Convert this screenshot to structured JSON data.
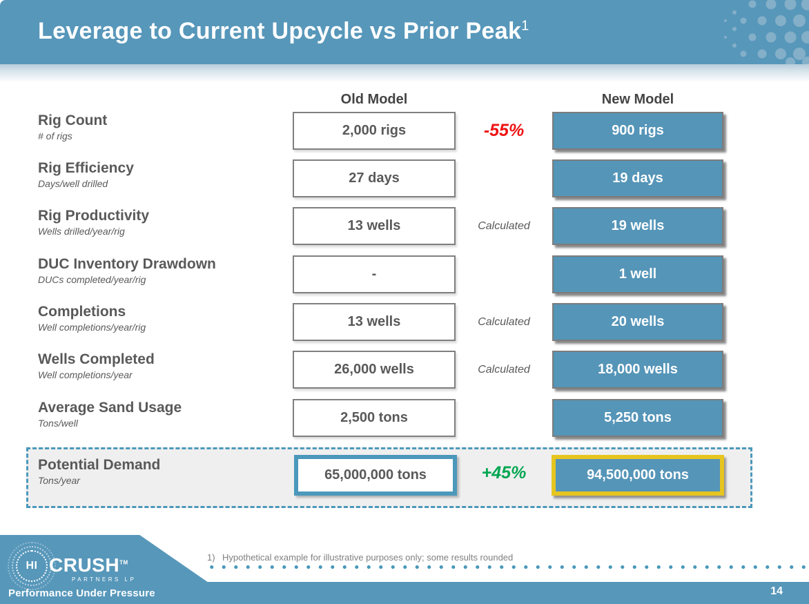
{
  "slide": {
    "title": "Leverage to Current Upcycle vs Prior Peak",
    "title_superscript": "1",
    "page_number": "14"
  },
  "colors": {
    "banner_blue": "#5797ba",
    "box_blue": "#5595b8",
    "pattern_dot_blue": "#84afc8",
    "box_border_gray": "#7f7f7f",
    "text_dark_gray": "#595959",
    "negative_red": "#ee1111",
    "positive_green": "#00a651",
    "summary_old_border_teal": "#4b98bb",
    "summary_new_border_gold": "#e6c51f",
    "summary_bg_gray": "#efefef",
    "footnote_gray": "#808080"
  },
  "table": {
    "columns": {
      "old_header": "Old Model",
      "new_header": "New Model"
    },
    "rows": [
      {
        "label": "Rig Count",
        "sublabel": "# of rigs",
        "old": "2,000 rigs",
        "delta": "-55%",
        "delta_style": "negative",
        "new": "900 rigs"
      },
      {
        "label": "Rig Efficiency",
        "sublabel": "Days/well drilled",
        "old": "27 days",
        "delta": "",
        "delta_style": "",
        "new": "19 days"
      },
      {
        "label": "Rig Productivity",
        "sublabel": "Wells drilled/year/rig",
        "old": "13 wells",
        "delta": "Calculated",
        "delta_style": "calculated",
        "new": "19 wells"
      },
      {
        "label": "DUC Inventory Drawdown",
        "sublabel": "DUCs completed/year/rig",
        "old": "-",
        "delta": "",
        "delta_style": "",
        "new": "1 well"
      },
      {
        "label": "Completions",
        "sublabel": "Well completions/year/rig",
        "old": "13 wells",
        "delta": "Calculated",
        "delta_style": "calculated",
        "new": "20 wells"
      },
      {
        "label": "Wells Completed",
        "sublabel": "Well completions/year",
        "old": "26,000 wells",
        "delta": "Calculated",
        "delta_style": "calculated",
        "new": "18,000 wells"
      },
      {
        "label": "Average Sand Usage",
        "sublabel": "Tons/well",
        "old": "2,500 tons",
        "delta": "",
        "delta_style": "",
        "new": "5,250 tons"
      }
    ],
    "summary_row": {
      "label": "Potential Demand",
      "sublabel": "Tons/year",
      "old": "65,000,000 tons",
      "delta": "+45%",
      "delta_style": "positive",
      "new": "94,500,000 tons"
    }
  },
  "footer": {
    "footnote_marker": "1)",
    "footnote_text": "Hypothetical example for illustrative purposes only; some results rounded",
    "logo": {
      "word1": "HI",
      "word2": "CRUSH",
      "trademark": "TM",
      "subtitle": "PARTNERS LP",
      "tagline": "Performance Under Pressure"
    }
  }
}
